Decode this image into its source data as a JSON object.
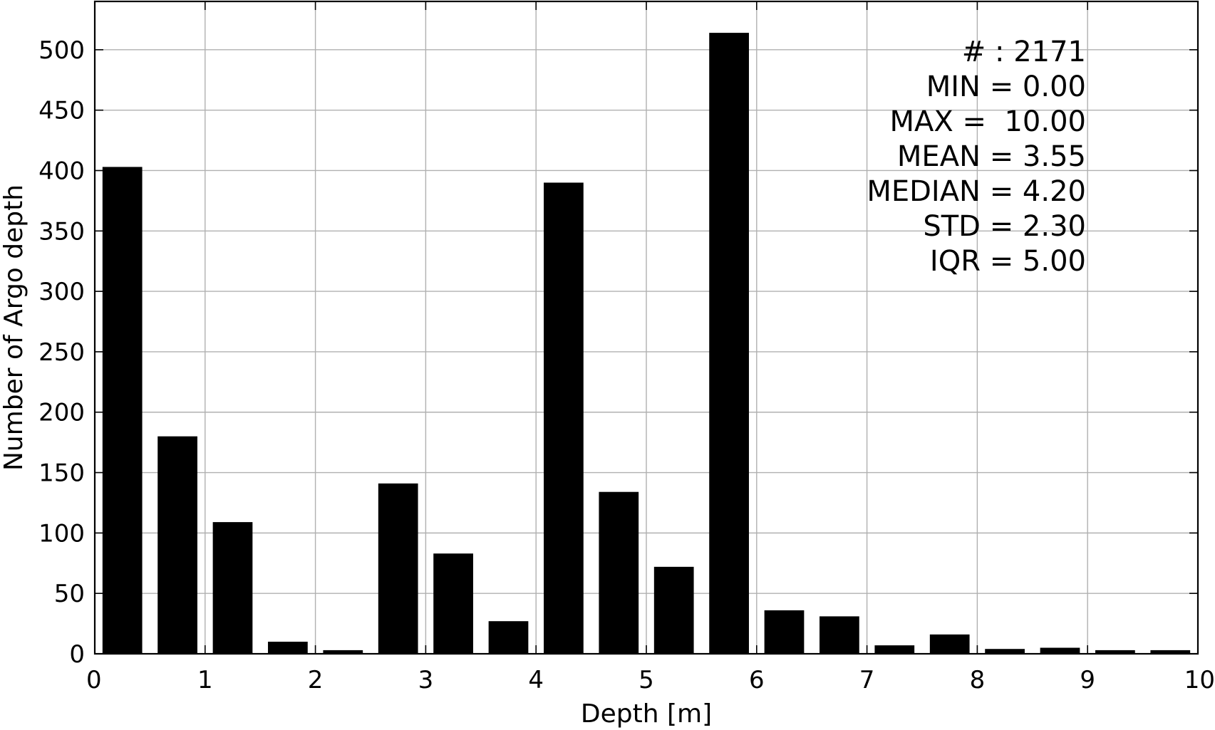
{
  "chart_data": {
    "type": "bar",
    "xlabel": "Depth [m]",
    "ylabel": "Number of Argo depth",
    "xlim": [
      0,
      10
    ],
    "ylim": [
      0,
      540
    ],
    "xticks": [
      0,
      1,
      2,
      3,
      4,
      5,
      6,
      7,
      8,
      9,
      10
    ],
    "yticks": [
      0,
      50,
      100,
      150,
      200,
      250,
      300,
      350,
      400,
      450,
      500
    ],
    "grid": true,
    "bin_width": 0.5,
    "bars": [
      {
        "x_start": 0.0,
        "value": 403
      },
      {
        "x_start": 0.5,
        "value": 180
      },
      {
        "x_start": 1.0,
        "value": 109
      },
      {
        "x_start": 1.5,
        "value": 10
      },
      {
        "x_start": 2.0,
        "value": 3
      },
      {
        "x_start": 2.5,
        "value": 141
      },
      {
        "x_start": 3.0,
        "value": 83
      },
      {
        "x_start": 3.5,
        "value": 27
      },
      {
        "x_start": 4.0,
        "value": 390
      },
      {
        "x_start": 4.5,
        "value": 134
      },
      {
        "x_start": 5.0,
        "value": 72
      },
      {
        "x_start": 5.5,
        "value": 514
      },
      {
        "x_start": 6.0,
        "value": 36
      },
      {
        "x_start": 6.5,
        "value": 31
      },
      {
        "x_start": 7.0,
        "value": 7
      },
      {
        "x_start": 7.5,
        "value": 16
      },
      {
        "x_start": 8.0,
        "value": 4
      },
      {
        "x_start": 8.5,
        "value": 5
      },
      {
        "x_start": 9.0,
        "value": 3
      },
      {
        "x_start": 9.5,
        "value": 3
      }
    ],
    "annotation_position": "top-right",
    "annotations": [
      "# : 2171",
      "MIN = 0.00",
      "MAX =  10.00",
      "MEAN = 3.55",
      "MEDIAN = 4.20",
      "STD = 2.30",
      "IQR = 5.00"
    ]
  }
}
